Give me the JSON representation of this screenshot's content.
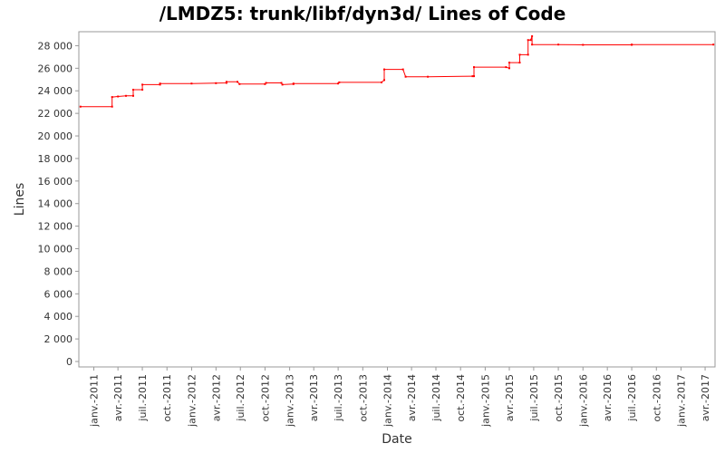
{
  "chart_data": {
    "type": "line",
    "title": "/LMDZ5: trunk/libf/dyn3d/ Lines of Code",
    "xlabel": "Date",
    "ylabel": "Lines",
    "ylim": [
      0,
      29000
    ],
    "xlim": [
      "2010-11-06",
      "2017-05-08"
    ],
    "grid": false,
    "yticks": [
      0,
      2000,
      4000,
      6000,
      8000,
      10000,
      12000,
      14000,
      16000,
      18000,
      20000,
      22000,
      24000,
      26000,
      28000
    ],
    "ytick_labels": [
      "0",
      "2 000",
      "4 000",
      "6 000",
      "8 000",
      "10 000",
      "12 000",
      "14 000",
      "16 000",
      "18 000",
      "20 000",
      "22 000",
      "24 000",
      "26 000",
      "28 000"
    ],
    "xticks": [
      "2011-01-01",
      "2011-04-01",
      "2011-07-01",
      "2011-10-01",
      "2012-01-01",
      "2012-04-01",
      "2012-07-01",
      "2012-10-01",
      "2013-01-01",
      "2013-04-01",
      "2013-07-01",
      "2013-10-01",
      "2014-01-01",
      "2014-04-01",
      "2014-07-01",
      "2014-10-01",
      "2015-01-01",
      "2015-04-01",
      "2015-07-01",
      "2015-10-01",
      "2016-01-01",
      "2016-04-01",
      "2016-07-01",
      "2016-10-01",
      "2017-01-01",
      "2017-04-01"
    ],
    "xtick_labels": [
      "janv.-2011",
      "avr.-2011",
      "juil.-2011",
      "oct.-2011",
      "janv.-2012",
      "avr.-2012",
      "juil.-2012",
      "oct.-2012",
      "janv.-2013",
      "avr.-2013",
      "juil.-2013",
      "oct.-2013",
      "janv.-2014",
      "avr.-2014",
      "juil.-2014",
      "oct.-2014",
      "janv.-2015",
      "avr.-2015",
      "juil.-2015",
      "oct.-2015",
      "janv.-2016",
      "avr.-2016",
      "juil.-2016",
      "oct.-2016",
      "janv.-2017",
      "avr.-2017"
    ],
    "line_color": "#ff0000",
    "series": [
      {
        "points": [
          [
            "2010-11-12",
            22600
          ],
          [
            "2011-03-10",
            22600
          ],
          [
            "2011-03-10",
            23450
          ],
          [
            "2011-04-01",
            23500
          ],
          [
            "2011-05-01",
            23550
          ],
          [
            "2011-05-28",
            23550
          ],
          [
            "2011-05-28",
            24100
          ],
          [
            "2011-07-01",
            24100
          ],
          [
            "2011-07-01",
            24550
          ],
          [
            "2011-09-05",
            24550
          ],
          [
            "2011-09-05",
            24650
          ],
          [
            "2012-01-01",
            24650
          ],
          [
            "2012-04-01",
            24680
          ],
          [
            "2012-05-10",
            24700
          ],
          [
            "2012-05-10",
            24800
          ],
          [
            "2012-06-20",
            24800
          ],
          [
            "2012-06-28",
            24600
          ],
          [
            "2012-10-01",
            24600
          ],
          [
            "2012-10-05",
            24700
          ],
          [
            "2012-12-01",
            24700
          ],
          [
            "2012-12-05",
            24550
          ],
          [
            "2013-01-15",
            24600
          ],
          [
            "2013-01-15",
            24650
          ],
          [
            "2013-07-01",
            24650
          ],
          [
            "2013-07-05",
            24750
          ],
          [
            "2013-12-10",
            24750
          ],
          [
            "2013-12-20",
            24950
          ],
          [
            "2013-12-20",
            25900
          ],
          [
            "2014-02-28",
            25900
          ],
          [
            "2014-03-10",
            25250
          ],
          [
            "2014-06-01",
            25250
          ],
          [
            "2014-11-15",
            25300
          ],
          [
            "2014-11-20",
            25300
          ],
          [
            "2014-11-20",
            26100
          ],
          [
            "2015-03-20",
            26100
          ],
          [
            "2015-04-01",
            26000
          ],
          [
            "2015-04-01",
            26500
          ],
          [
            "2015-05-10",
            26500
          ],
          [
            "2015-05-10",
            27200
          ],
          [
            "2015-06-10",
            27200
          ],
          [
            "2015-06-10",
            28500
          ],
          [
            "2015-06-20",
            28500
          ],
          [
            "2015-06-25",
            28850
          ],
          [
            "2015-06-25",
            28100
          ],
          [
            "2015-10-01",
            28100
          ],
          [
            "2016-01-01",
            28080
          ],
          [
            "2016-07-01",
            28080
          ],
          [
            "2016-07-01",
            28100
          ],
          [
            "2017-05-02",
            28100
          ]
        ]
      }
    ]
  }
}
